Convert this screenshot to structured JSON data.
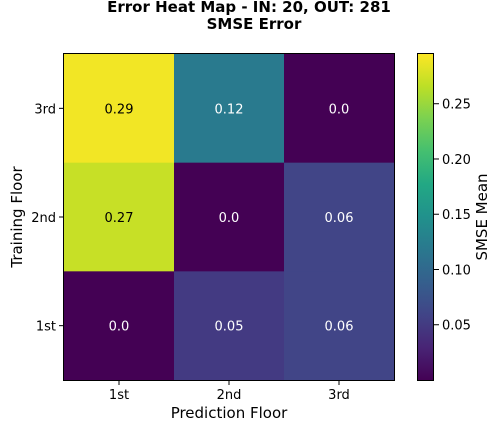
{
  "chart_data": {
    "type": "heatmap",
    "title": "Error Heat Map - IN: 20, OUT: 281",
    "subtitle": "SMSE Error",
    "xlabel": "Prediction Floor",
    "ylabel": "Training Floor",
    "x_categories": [
      "1st",
      "2nd",
      "3rd"
    ],
    "y_categories": [
      "1st",
      "2nd",
      "3rd"
    ],
    "cells": [
      {
        "x": "1st",
        "y": "3rd",
        "value": 0.29,
        "label": "0.29"
      },
      {
        "x": "2nd",
        "y": "3rd",
        "value": 0.12,
        "label": "0.12"
      },
      {
        "x": "3rd",
        "y": "3rd",
        "value": 0.0,
        "label": "0.0"
      },
      {
        "x": "1st",
        "y": "2nd",
        "value": 0.27,
        "label": "0.27"
      },
      {
        "x": "2nd",
        "y": "2nd",
        "value": 0.0,
        "label": "0.0"
      },
      {
        "x": "3rd",
        "y": "2nd",
        "value": 0.06,
        "label": "0.06"
      },
      {
        "x": "1st",
        "y": "1st",
        "value": 0.0,
        "label": "0.0"
      },
      {
        "x": "2nd",
        "y": "1st",
        "value": 0.05,
        "label": "0.05"
      },
      {
        "x": "3rd",
        "y": "1st",
        "value": 0.06,
        "label": "0.06"
      }
    ],
    "colorbar": {
      "label": "SMSE Mean",
      "colormap": "viridis",
      "range": [
        0.0,
        0.295
      ],
      "ticks": [
        0.05,
        0.1,
        0.15,
        0.2,
        0.25
      ],
      "tick_labels": [
        "0.05",
        "0.10",
        "0.15",
        "0.20",
        "0.25"
      ]
    },
    "grid": false
  }
}
